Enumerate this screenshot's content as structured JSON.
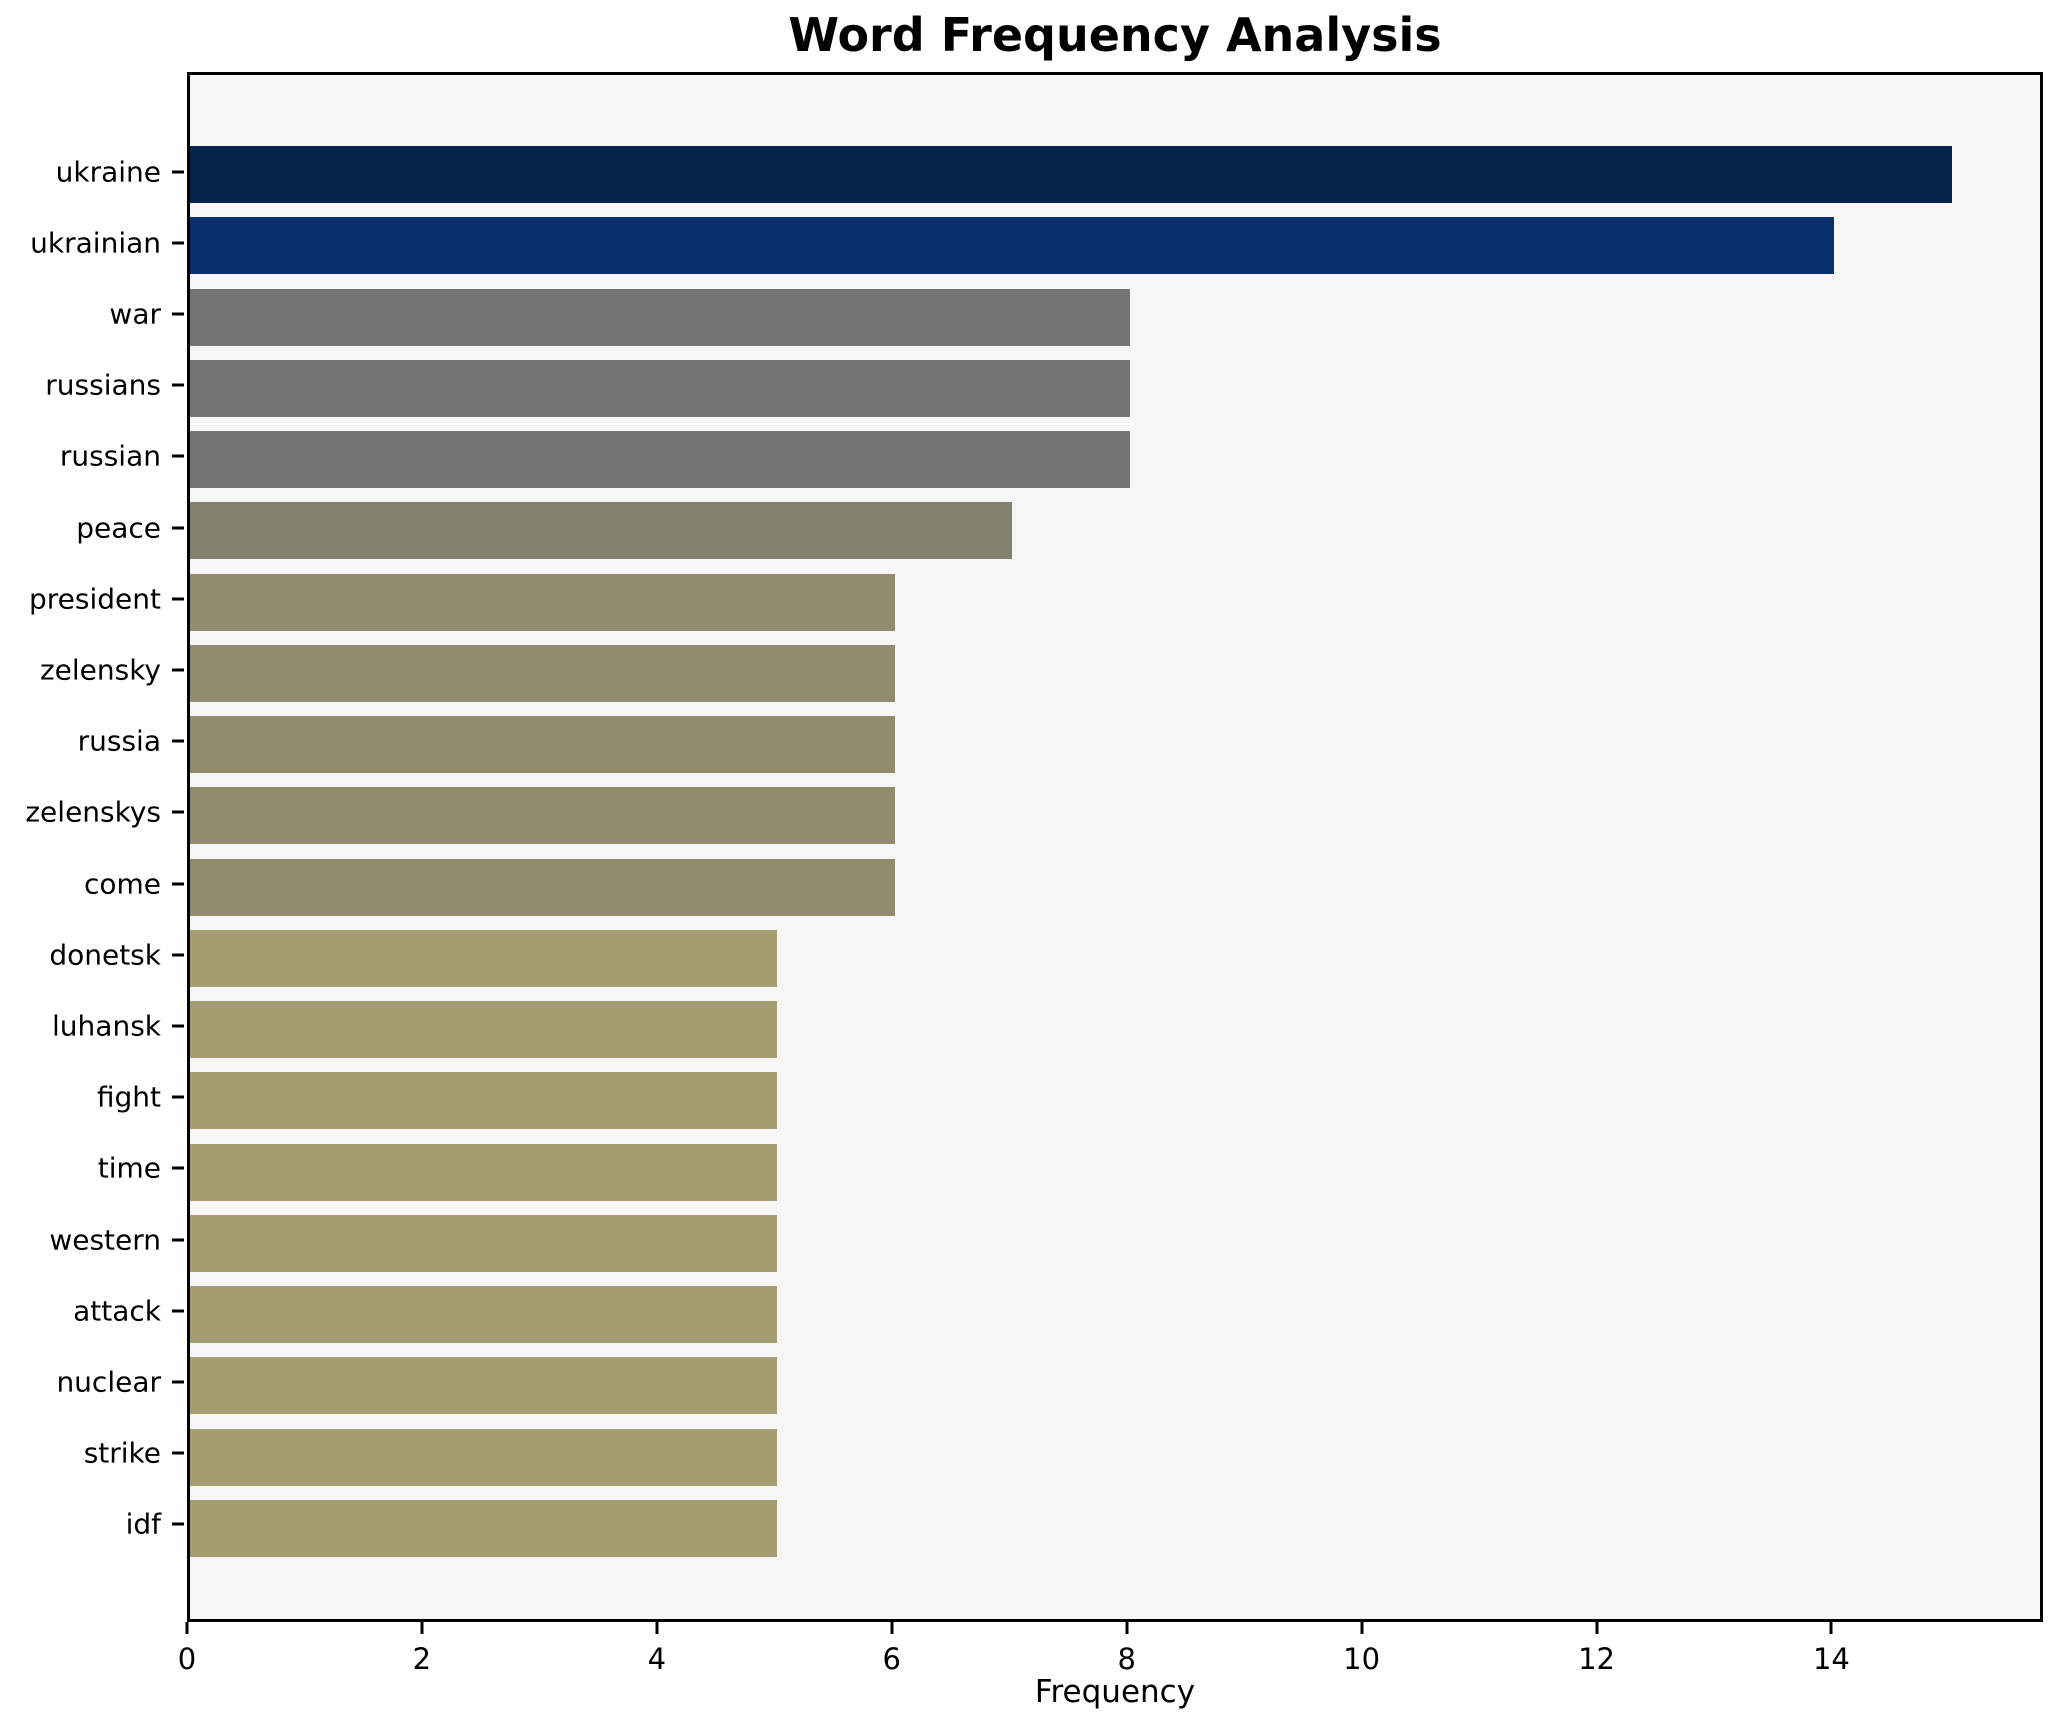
{
  "chart_data": {
    "type": "bar",
    "orientation": "horizontal",
    "title": "Word Frequency Analysis",
    "xlabel": "Frequency",
    "ylabel": "",
    "categories": [
      "ukraine",
      "ukrainian",
      "war",
      "russians",
      "russian",
      "peace",
      "president",
      "zelensky",
      "russia",
      "zelenskys",
      "come",
      "donetsk",
      "luhansk",
      "fight",
      "time",
      "western",
      "attack",
      "nuclear",
      "strike",
      "idf"
    ],
    "values": [
      15,
      14,
      8,
      8,
      8,
      7,
      6,
      6,
      6,
      6,
      6,
      5,
      5,
      5,
      5,
      5,
      5,
      5,
      5,
      5
    ],
    "bar_colors": [
      "#04234B",
      "#07306A",
      "#747474",
      "#747474",
      "#747474",
      "#84816E",
      "#918B70",
      "#918B70",
      "#918B70",
      "#918B70",
      "#918B70",
      "#A49D72",
      "#A49D72",
      "#A49D72",
      "#A49D72",
      "#A49D72",
      "#A49D72",
      "#A49D72",
      "#A49D72",
      "#A49D72"
    ],
    "xlim": [
      0,
      15.75
    ],
    "xticks": [
      0,
      2,
      4,
      6,
      8,
      10,
      12,
      14
    ],
    "grid": false,
    "legend": null,
    "plot_background": "#f6f6f6",
    "figure_background": "#ffffff"
  }
}
